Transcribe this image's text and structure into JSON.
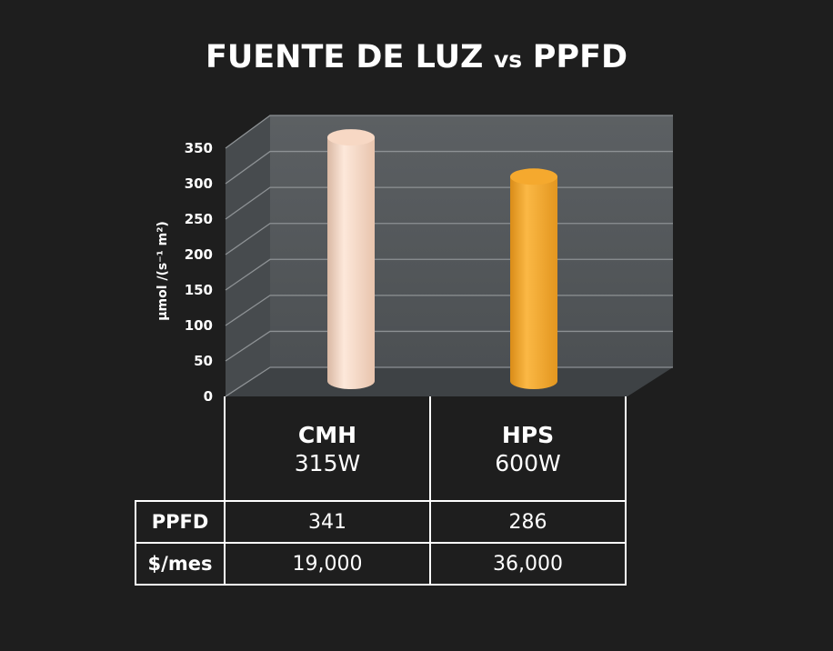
{
  "chart_data": {
    "type": "bar",
    "title_main": "FUENTE DE LUZ",
    "title_vs": "vs",
    "title_end": "PPFD",
    "ylabel": "µmol /(s⁻¹ m²)",
    "ylim": [
      0,
      350
    ],
    "yticks": [
      "0",
      "50",
      "100",
      "150",
      "200",
      "250",
      "300",
      "350"
    ],
    "categories": [
      "CMH",
      "HPS"
    ],
    "category_sublabels": [
      "315W",
      "600W"
    ],
    "values": [
      341,
      286
    ],
    "bar_colors": [
      "#f7d8c4",
      "#f5a92e"
    ],
    "wall_color": "#55595c",
    "grid": true
  },
  "table": {
    "rows": [
      {
        "label": "PPFD",
        "values": [
          "341",
          "286"
        ]
      },
      {
        "label": "$/mes",
        "values": [
          "19,000",
          "36,000"
        ]
      }
    ]
  }
}
